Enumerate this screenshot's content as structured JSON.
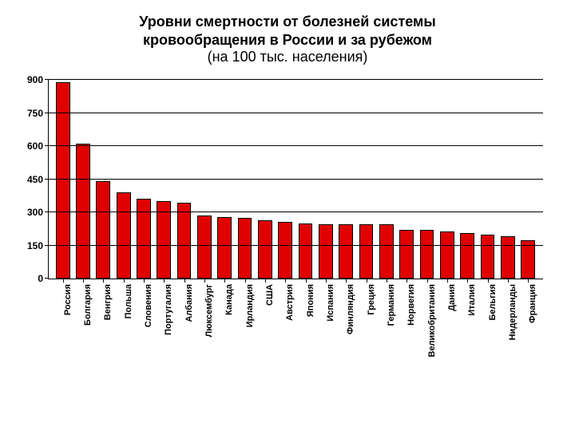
{
  "title": {
    "line1": "Уровни смертности от болезней системы",
    "line2": "кровообращения в России и за рубежом",
    "sub": "(на 100 тыс. населения)",
    "fontsize_main": 18,
    "fontsize_sub": 18,
    "color": "#000000"
  },
  "chart": {
    "type": "bar",
    "background_color": "#ffffff",
    "grid_color": "#000000",
    "axis_color": "#000000",
    "bar_color": "#e00000",
    "bar_border_color": "#000000",
    "bar_width": 0.7,
    "ylim": [
      0,
      900
    ],
    "ytick_step": 150,
    "yticks": [
      0,
      150,
      300,
      450,
      600,
      750,
      900
    ],
    "label_fontsize": 12,
    "xlabel_fontsize": 11,
    "xlabel_fontweight": "bold",
    "ylabel_fontweight": "bold",
    "categories": [
      "Россия",
      "Болгария",
      "Венгрия",
      "Польша",
      "Словения",
      "Португалия",
      "Албания",
      "Люксембург",
      "Канада",
      "Ирландия",
      "США",
      "Австрия",
      "Япония",
      "Испания",
      "Финляндия",
      "Греция",
      "Германия",
      "Норвегия",
      "Великобритания",
      "Дания",
      "Италия",
      "Бельгия",
      "Нидерланды",
      "Франция"
    ],
    "values": [
      890,
      610,
      440,
      390,
      360,
      350,
      345,
      285,
      280,
      275,
      265,
      255,
      250,
      245,
      245,
      245,
      245,
      220,
      220,
      215,
      205,
      200,
      190,
      175
    ]
  }
}
